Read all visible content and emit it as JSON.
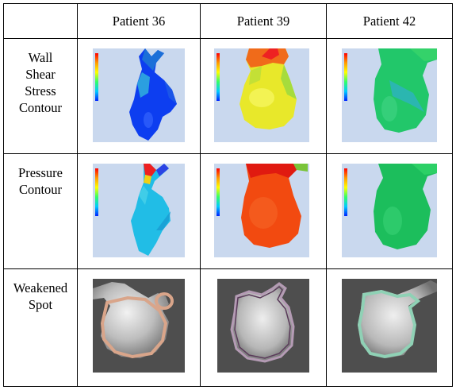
{
  "table": {
    "column_headers": [
      "Patient 36",
      "Patient 39",
      "Patient 42"
    ],
    "row_headers": [
      "Wall\nShear\nStress\nContour",
      "Pressure\nContour",
      "Weakened\nSpot"
    ]
  },
  "colors": {
    "contour_background": "#c9d8ee",
    "weak_spot_background": "#4e4e4e",
    "p36_outline": "#d9a58a",
    "p39_outline": "#b49bb4",
    "p42_outline": "#8fd1b5"
  }
}
